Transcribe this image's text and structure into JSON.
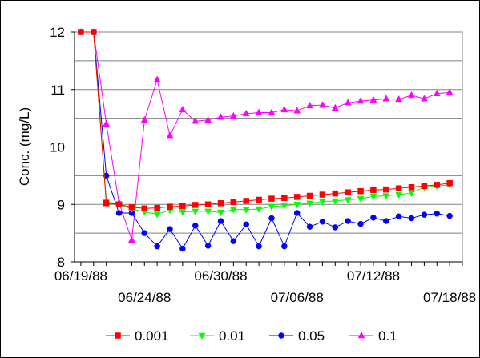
{
  "chart_data": {
    "type": "line",
    "ylabel": "Conc. (mg/L)",
    "xlabel": "",
    "title": "",
    "ylim": [
      8,
      12
    ],
    "yticks": [
      8,
      9,
      10,
      11,
      12
    ],
    "y_tick_labels": [
      "8",
      "9",
      "10",
      "11",
      "12"
    ],
    "x_range": [
      "06/18/88 12:00",
      "07/19/88 00:00"
    ],
    "xticks": [
      "06/19/88",
      "06/24/88",
      "06/30/88",
      "07/06/88",
      "07/12/88",
      "07/18/88"
    ],
    "x_tick_labels": [
      "06/19/88",
      "06/24/88",
      "06/30/88",
      "07/06/88",
      "07/12/88",
      "07/18/88"
    ],
    "grid": "horizontal",
    "legend_position": "bottom",
    "series": [
      {
        "name": "0.001",
        "color": "#ff0000",
        "marker": "square",
        "x": [
          "06/19/88",
          "06/20/88",
          "06/21/88",
          "06/22/88",
          "06/23/88",
          "06/24/88",
          "06/25/88",
          "06/26/88",
          "06/27/88",
          "06/28/88",
          "06/29/88",
          "06/30/88",
          "07/01/88",
          "07/02/88",
          "07/03/88",
          "07/04/88",
          "07/05/88",
          "07/06/88",
          "07/07/88",
          "07/08/88",
          "07/09/88",
          "07/10/88",
          "07/11/88",
          "07/12/88",
          "07/13/88",
          "07/14/88",
          "07/15/88",
          "07/16/88",
          "07/17/88",
          "07/18/88"
        ],
        "values": [
          12.0,
          12.0,
          9.02,
          9.0,
          8.95,
          8.93,
          8.94,
          8.96,
          8.97,
          8.99,
          9.0,
          9.02,
          9.04,
          9.06,
          9.08,
          9.1,
          9.11,
          9.13,
          9.15,
          9.17,
          9.19,
          9.21,
          9.23,
          9.25,
          9.26,
          9.28,
          9.3,
          9.32,
          9.34,
          9.37
        ]
      },
      {
        "name": "0.01",
        "color": "#00ff00",
        "marker": "triangle-down",
        "x": [
          "06/19/88",
          "06/20/88",
          "06/21/88",
          "06/22/88",
          "06/23/88",
          "06/24/88",
          "06/25/88",
          "06/26/88",
          "06/27/88",
          "06/28/88",
          "06/29/88",
          "06/30/88",
          "07/01/88",
          "07/02/88",
          "07/03/88",
          "07/04/88",
          "07/05/88",
          "07/06/88",
          "07/07/88",
          "07/08/88",
          "07/09/88",
          "07/10/88",
          "07/11/88",
          "07/12/88",
          "07/13/88",
          "07/14/88",
          "07/15/88",
          "07/16/88",
          "07/17/88",
          "07/18/88"
        ],
        "values": [
          12.0,
          12.0,
          9.05,
          9.0,
          8.92,
          8.87,
          8.83,
          8.9,
          8.87,
          8.88,
          8.88,
          8.86,
          8.91,
          8.91,
          8.92,
          8.96,
          8.98,
          9.0,
          9.02,
          9.05,
          9.06,
          9.08,
          9.1,
          9.14,
          9.15,
          9.17,
          9.2,
          9.3,
          9.32,
          9.34
        ]
      },
      {
        "name": "0.05",
        "color": "#0000ff",
        "marker": "circle",
        "x": [
          "06/19/88",
          "06/20/88",
          "06/21/88",
          "06/22/88",
          "06/23/88",
          "06/24/88",
          "06/25/88",
          "06/26/88",
          "06/27/88",
          "06/28/88",
          "06/29/88",
          "06/30/88",
          "07/01/88",
          "07/02/88",
          "07/03/88",
          "07/04/88",
          "07/05/88",
          "07/06/88",
          "07/07/88",
          "07/08/88",
          "07/09/88",
          "07/10/88",
          "07/11/88",
          "07/12/88",
          "07/13/88",
          "07/14/88",
          "07/15/88",
          "07/16/88",
          "07/17/88",
          "07/18/88"
        ],
        "values": [
          12.0,
          12.0,
          9.5,
          8.85,
          8.85,
          8.5,
          8.27,
          8.57,
          8.23,
          8.63,
          8.28,
          8.71,
          8.36,
          8.65,
          8.27,
          8.76,
          8.27,
          8.85,
          8.61,
          8.7,
          8.6,
          8.71,
          8.66,
          8.77,
          8.71,
          8.79,
          8.76,
          8.82,
          8.84,
          8.8
        ]
      },
      {
        "name": "0.1",
        "color": "#ff00ff",
        "marker": "triangle-up",
        "x": [
          "06/19/88",
          "06/20/88",
          "06/21/88",
          "06/22/88",
          "06/23/88",
          "06/24/88",
          "06/25/88",
          "06/26/88",
          "06/27/88",
          "06/28/88",
          "06/29/88",
          "06/30/88",
          "07/01/88",
          "07/02/88",
          "07/03/88",
          "07/04/88",
          "07/05/88",
          "07/06/88",
          "07/07/88",
          "07/08/88",
          "07/09/88",
          "07/10/88",
          "07/11/88",
          "07/12/88",
          "07/13/88",
          "07/14/88",
          "07/15/88",
          "07/16/88",
          "07/17/88",
          "07/18/88"
        ],
        "values": [
          12.0,
          12.0,
          10.4,
          9.03,
          8.38,
          10.47,
          11.17,
          10.2,
          10.65,
          10.45,
          10.47,
          10.52,
          10.54,
          10.58,
          10.6,
          10.6,
          10.65,
          10.63,
          10.72,
          10.73,
          10.68,
          10.77,
          10.8,
          10.82,
          10.84,
          10.83,
          10.9,
          10.84,
          10.93,
          10.95
        ]
      }
    ]
  }
}
